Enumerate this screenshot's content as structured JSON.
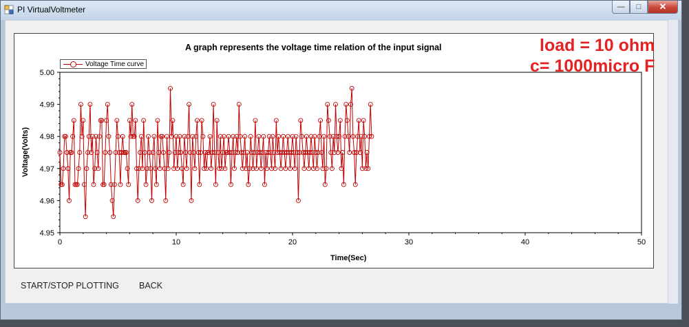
{
  "window": {
    "title": "PI VirtualVoltmeter",
    "controls": [
      "minimize",
      "maximize",
      "close"
    ]
  },
  "annotations": {
    "line1": "load = 10 ohm",
    "line2": "c= 1000micro F"
  },
  "buttons": {
    "start_stop": "START/STOP PLOTTING",
    "back": "BACK"
  },
  "chart_data": {
    "type": "line",
    "title": "A graph represents the voltage time relation of the input signal",
    "xlabel": "Time(Sec)",
    "ylabel": "Voltage(Volts)",
    "xlim": [
      0,
      50
    ],
    "ylim": [
      4.95,
      5.0
    ],
    "xticks": [
      "0",
      "10",
      "20",
      "30",
      "40",
      "50"
    ],
    "yticks": [
      "4.95",
      "4.96",
      "4.97",
      "4.98",
      "4.99",
      "5.00"
    ],
    "grid": false,
    "legend_placement": "top-left",
    "series": [
      {
        "name": "Voltage Time curve",
        "color": "#c00000",
        "marker": "circle",
        "x_start": 0,
        "x_step": 0.1,
        "values": [
          4.975,
          4.965,
          4.965,
          4.97,
          4.98,
          4.98,
          4.975,
          4.97,
          4.96,
          4.975,
          4.975,
          4.98,
          4.985,
          4.965,
          4.965,
          4.965,
          4.97,
          4.975,
          4.99,
          4.98,
          4.985,
          4.965,
          4.955,
          4.97,
          4.975,
          4.98,
          4.99,
          4.975,
          4.98,
          4.965,
          4.97,
          4.98,
          4.975,
          4.97,
          4.98,
          4.985,
          4.985,
          4.965,
          4.965,
          4.975,
          4.985,
          4.99,
          4.98,
          4.975,
          4.965,
          4.96,
          4.955,
          4.965,
          4.975,
          4.985,
          4.98,
          4.975,
          4.965,
          4.975,
          4.98,
          4.975,
          4.975,
          4.975,
          4.97,
          4.965,
          4.985,
          4.98,
          4.99,
          4.98,
          4.98,
          4.985,
          4.97,
          4.96,
          4.97,
          4.975,
          4.98,
          4.97,
          4.985,
          4.975,
          4.965,
          4.97,
          4.98,
          4.975,
          4.97,
          4.96,
          4.975,
          4.98,
          4.97,
          4.965,
          4.985,
          4.975,
          4.97,
          4.98,
          4.98,
          4.975,
          4.97,
          4.96,
          4.98,
          4.97,
          4.975,
          4.995,
          4.98,
          4.985,
          4.97,
          4.975,
          4.98,
          4.97,
          4.975,
          4.98,
          4.975,
          4.97,
          4.965,
          4.98,
          4.975,
          4.97,
          4.98,
          4.99,
          4.975,
          4.96,
          4.98,
          4.975,
          4.97,
          4.98,
          4.985,
          4.975,
          4.965,
          4.975,
          4.985,
          4.98,
          4.97,
          4.975,
          4.97,
          4.975,
          4.975,
          4.98,
          4.97,
          4.975,
          4.99,
          4.975,
          4.965,
          4.985,
          4.975,
          4.97,
          4.98,
          4.97,
          4.975,
          4.98,
          4.97,
          4.975,
          4.975,
          4.98,
          4.975,
          4.965,
          4.975,
          4.98,
          4.97,
          4.975,
          4.98,
          4.975,
          4.99,
          4.98,
          4.975,
          4.97,
          4.975,
          4.98,
          4.97,
          4.975,
          4.965,
          4.97,
          4.98,
          4.975,
          4.97,
          4.975,
          4.985,
          4.97,
          4.975,
          4.98,
          4.975,
          4.97,
          4.975,
          4.98,
          4.965,
          4.975,
          4.97,
          4.975,
          4.98,
          4.975,
          4.97,
          4.98,
          4.975,
          4.97,
          4.985,
          4.975,
          4.98,
          4.975,
          4.97,
          4.975,
          4.98,
          4.975,
          4.97,
          4.975,
          4.98,
          4.975,
          4.97,
          4.975,
          4.98,
          4.975,
          4.97,
          4.98,
          4.975,
          4.96,
          4.975,
          4.985,
          4.98,
          4.975,
          4.97,
          4.975,
          4.98,
          4.975,
          4.97,
          4.975,
          4.98,
          4.975,
          4.97,
          4.98,
          4.975,
          4.97,
          4.975,
          4.98,
          4.985,
          4.975,
          4.97,
          4.98,
          4.965,
          4.97,
          4.99,
          4.985,
          4.98,
          4.975,
          4.97,
          4.98,
          4.975,
          4.99,
          4.98,
          4.975,
          4.98,
          4.985,
          4.97,
          4.975,
          4.965,
          4.98,
          4.99,
          4.985,
          4.98,
          4.975,
          4.99,
          4.995,
          4.98,
          4.975,
          4.965,
          4.975,
          4.98,
          4.985,
          4.975,
          4.98,
          4.97,
          4.985,
          4.98,
          4.97,
          4.975,
          4.97,
          4.98,
          4.99,
          4.98
        ]
      }
    ]
  }
}
